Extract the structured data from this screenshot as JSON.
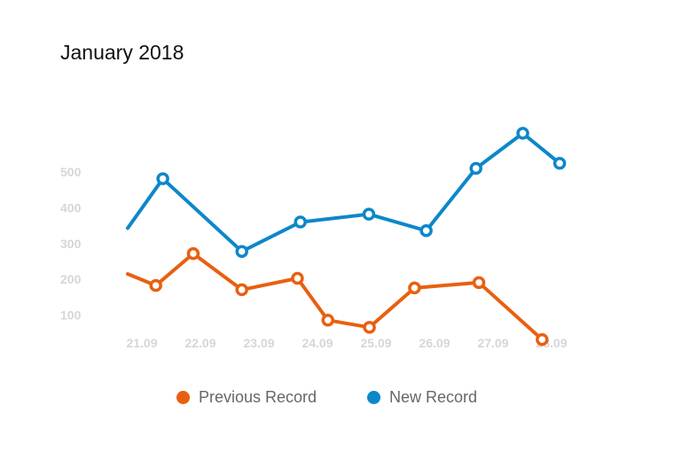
{
  "chart_data": {
    "type": "line",
    "title": "January 2018",
    "categories": [
      "21.09",
      "22.09",
      "23.09",
      "24.09",
      "25.09",
      "26.09",
      "27.09",
      "28.09"
    ],
    "y_ticks": [
      100,
      200,
      300,
      400,
      500
    ],
    "ylim": [
      0,
      600
    ],
    "grid": false,
    "legend_position": "bottom",
    "series": [
      {
        "name": "Previous Record",
        "color": "#e8600f",
        "points": [
          {
            "x": 0.0,
            "y": 215,
            "marker": false
          },
          {
            "x": 0.48,
            "y": 183,
            "marker": true
          },
          {
            "x": 1.12,
            "y": 272,
            "marker": true
          },
          {
            "x": 1.95,
            "y": 171,
            "marker": true
          },
          {
            "x": 2.9,
            "y": 203,
            "marker": true
          },
          {
            "x": 3.42,
            "y": 86,
            "marker": true
          },
          {
            "x": 4.13,
            "y": 66,
            "marker": true
          },
          {
            "x": 4.9,
            "y": 176,
            "marker": true
          },
          {
            "x": 6.0,
            "y": 191,
            "marker": true
          },
          {
            "x": 7.08,
            "y": 32,
            "marker": true
          }
        ]
      },
      {
        "name": "New Record",
        "color": "#0d87c9",
        "points": [
          {
            "x": 0.0,
            "y": 343,
            "marker": false
          },
          {
            "x": 0.6,
            "y": 481,
            "marker": true
          },
          {
            "x": 1.95,
            "y": 278,
            "marker": true
          },
          {
            "x": 2.95,
            "y": 360,
            "marker": true
          },
          {
            "x": 4.12,
            "y": 382,
            "marker": true
          },
          {
            "x": 5.1,
            "y": 336,
            "marker": true
          },
          {
            "x": 5.95,
            "y": 510,
            "marker": true
          },
          {
            "x": 6.75,
            "y": 608,
            "marker": true
          },
          {
            "x": 7.38,
            "y": 524,
            "marker": true
          }
        ]
      }
    ]
  }
}
